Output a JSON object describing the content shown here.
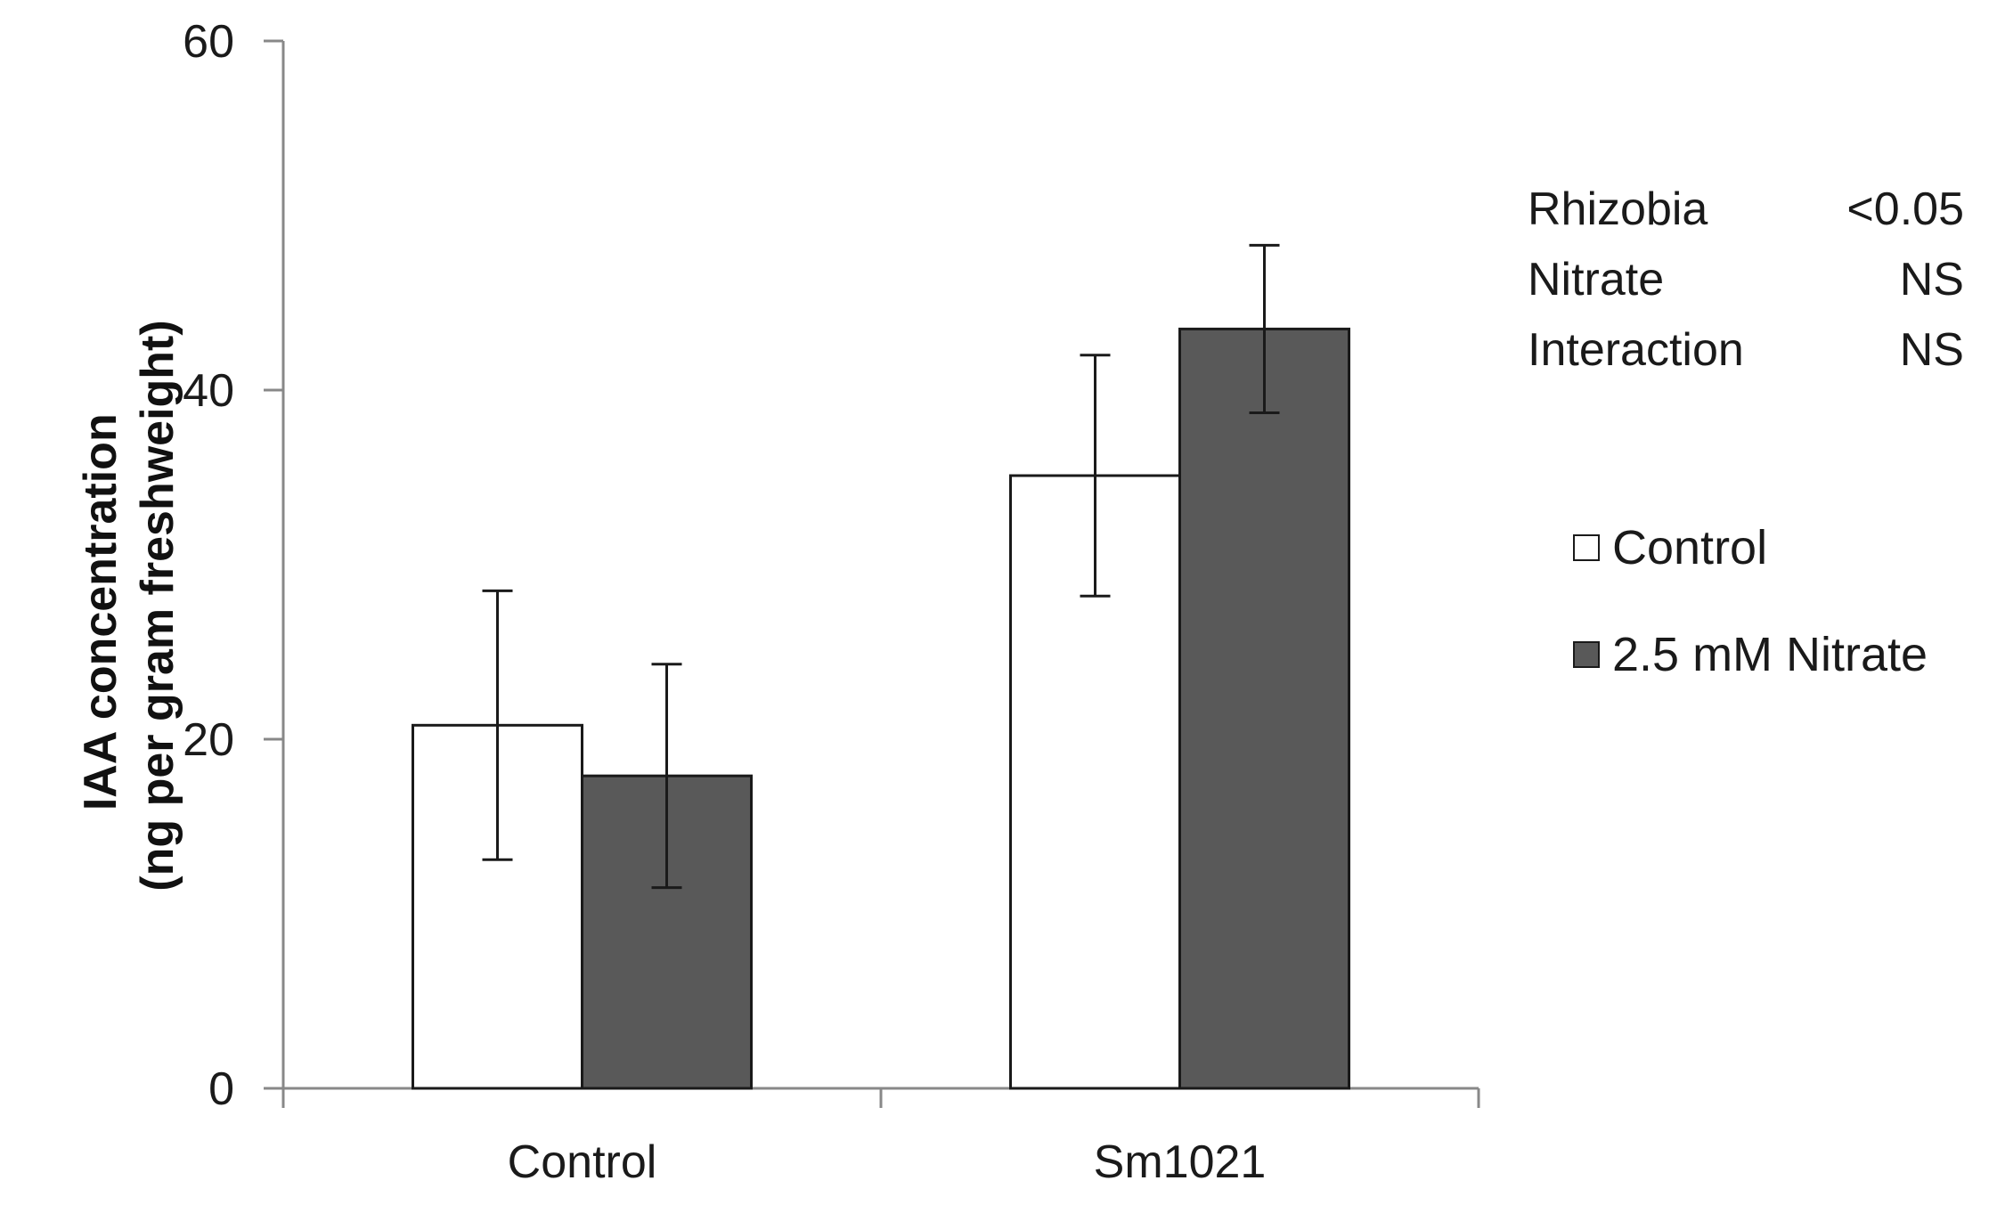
{
  "chart_data": {
    "type": "bar",
    "title": "",
    "xlabel": "",
    "ylabel_line1": "IAA concentration",
    "ylabel_line2": "(ng per gram freshweight)",
    "ylim": [
      0,
      60
    ],
    "yticks": [
      0,
      20,
      40,
      60
    ],
    "categories": [
      "Control",
      "Sm1021"
    ],
    "series": [
      {
        "name": "Control",
        "color": "#ffffff",
        "values": [
          20.8,
          35.1
        ],
        "errors": [
          7.7,
          6.9
        ]
      },
      {
        "name": "2.5 mM Nitrate",
        "color": "#595959",
        "values": [
          17.9,
          43.5
        ],
        "errors": [
          6.4,
          4.8
        ]
      }
    ],
    "legend_position": "right",
    "stats": [
      {
        "label": "Rhizobia",
        "value": "<0.05"
      },
      {
        "label": "Nitrate",
        "value": "NS"
      },
      {
        "label": "Interaction",
        "value": "NS"
      }
    ]
  }
}
